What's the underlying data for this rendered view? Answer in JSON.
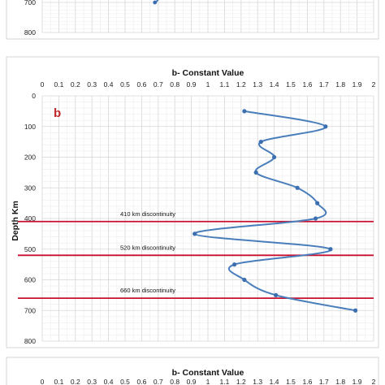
{
  "top_fragment": {
    "y_ticks": [
      "700",
      "800"
    ],
    "point": {
      "x": 0.68,
      "depth": 700
    }
  },
  "chart_data": {
    "type": "line",
    "panel_label": "b",
    "title": "b- Constant Value",
    "xlabel": "b- Constant Value",
    "ylabel": "Depth Km",
    "xlim": [
      0,
      2
    ],
    "ylim": [
      0,
      800
    ],
    "y_inverted": true,
    "x_ticks": [
      "0",
      "0.1",
      "0.2",
      "0.3",
      "0.4",
      "0.5",
      "0.6",
      "0.7",
      "0.8",
      "0.9",
      "1",
      "1.1",
      "1.2",
      "1.3",
      "1.4",
      "1.5",
      "1.6",
      "1.7",
      "1.8",
      "1.9",
      "2"
    ],
    "y_ticks": [
      "0",
      "100",
      "200",
      "300",
      "400",
      "500",
      "600",
      "700",
      "800"
    ],
    "grid": true,
    "series": [
      {
        "color": "#4a7ebb",
        "points": [
          {
            "x": 1.22,
            "depth": 50
          },
          {
            "x": 1.71,
            "depth": 100
          },
          {
            "x": 1.32,
            "depth": 150
          },
          {
            "x": 1.4,
            "depth": 200
          },
          {
            "x": 1.29,
            "depth": 250
          },
          {
            "x": 1.54,
            "depth": 300
          },
          {
            "x": 1.66,
            "depth": 350
          },
          {
            "x": 1.65,
            "depth": 400
          },
          {
            "x": 0.92,
            "depth": 450
          },
          {
            "x": 1.74,
            "depth": 500
          },
          {
            "x": 1.16,
            "depth": 550
          },
          {
            "x": 1.22,
            "depth": 600
          },
          {
            "x": 1.41,
            "depth": 650
          },
          {
            "x": 1.89,
            "depth": 700
          }
        ]
      }
    ],
    "discontinuities": [
      {
        "depth": 410,
        "label": "410 km discontinuity"
      },
      {
        "depth": 520,
        "label": "520 km discontinuity"
      },
      {
        "depth": 660,
        "label": "660 km discontinuity"
      }
    ],
    "discontinuity_color": "#c8102e"
  },
  "bottom_fragment": {
    "title": "b- Constant Value",
    "x_ticks": [
      "0",
      "0.1",
      "0.2",
      "0.3",
      "0.4",
      "0.5",
      "0.6",
      "0.7",
      "0.8",
      "0.9",
      "1",
      "1.1",
      "1.2",
      "1.3",
      "1.4",
      "1.5",
      "1.6",
      "1.7",
      "1.8",
      "1.9",
      "2"
    ]
  }
}
